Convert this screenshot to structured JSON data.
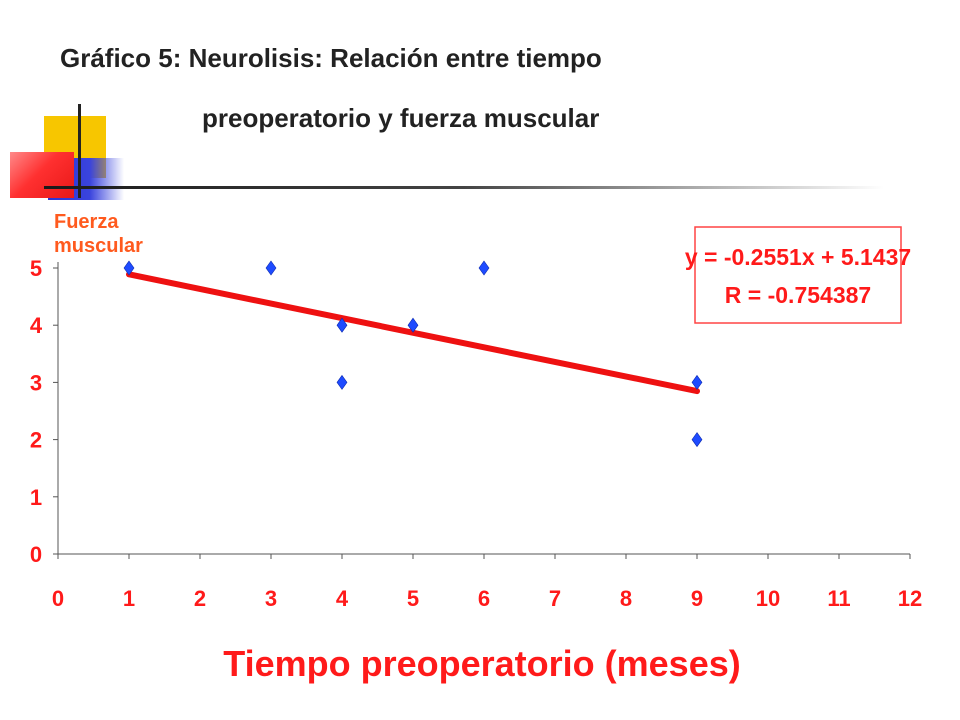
{
  "title": {
    "line1": "Gráfico 5: Neurolisis: Relación entre tiempo",
    "line2": "preoperatorio y fuerza muscular"
  },
  "chart_data": {
    "type": "scatter",
    "xlabel": "Tiempo preoperatorio (meses)",
    "ylabel": "Fuerza\nmuscular",
    "xlim": [
      0,
      12
    ],
    "ylim": [
      0,
      5
    ],
    "xticks": [
      "0",
      "1",
      "2",
      "3",
      "4",
      "5",
      "6",
      "7",
      "8",
      "9",
      "10",
      "11",
      "12"
    ],
    "yticks": [
      "0",
      "1",
      "2",
      "3",
      "4",
      "5"
    ],
    "grid": false,
    "points": [
      {
        "x": 1,
        "y": 5
      },
      {
        "x": 3,
        "y": 5
      },
      {
        "x": 4,
        "y": 4
      },
      {
        "x": 4,
        "y": 3
      },
      {
        "x": 5,
        "y": 4
      },
      {
        "x": 6,
        "y": 5
      },
      {
        "x": 9,
        "y": 3
      },
      {
        "x": 9,
        "y": 2
      }
    ],
    "trendline": {
      "slope": -0.2551,
      "intercept": 5.1437,
      "x_start": 1,
      "x_end": 9
    },
    "annotation": {
      "equation": "y = -0.2551x + 5.1437",
      "r_value": "R = -0.754387"
    },
    "colors": {
      "marker": "#1e4bff",
      "trendline": "#ee1111",
      "axis_text": "#ff1a1a",
      "annotation_border": "#ff4444",
      "annotation_text": "#ff1a1a",
      "ylabel": "#ff5a1e"
    }
  }
}
